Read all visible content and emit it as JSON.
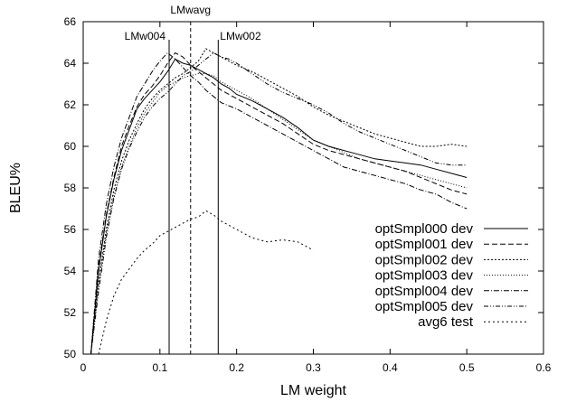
{
  "chart_data": {
    "type": "line",
    "xlabel": "LM weight",
    "ylabel": "BLEU%",
    "xlim": [
      0,
      0.6
    ],
    "ylim": [
      50,
      66
    ],
    "xticks": [
      0,
      0.1,
      0.2,
      0.3,
      0.4,
      0.5,
      0.6
    ],
    "xtick_labels": [
      "0",
      "0.1",
      "0.2",
      "0.3",
      "0.4",
      "0.5",
      "0.6"
    ],
    "yticks": [
      50,
      52,
      54,
      56,
      58,
      60,
      62,
      64,
      66
    ],
    "ytick_labels": [
      "50",
      "52",
      "54",
      "56",
      "58",
      "60",
      "62",
      "64",
      "66"
    ],
    "grid": false,
    "legend_position": "bottom-right",
    "vlines": [
      {
        "x": 0.112,
        "label": "LMw004",
        "style": "solid"
      },
      {
        "x": 0.14,
        "label": "LMwavg",
        "style": "dashed"
      },
      {
        "x": 0.176,
        "label": "LMw002",
        "style": "solid"
      }
    ],
    "series": [
      {
        "name": "optSmpl000 dev",
        "dash": "none",
        "x": [
          0.01,
          0.02,
          0.03,
          0.04,
          0.05,
          0.06,
          0.07,
          0.08,
          0.09,
          0.1,
          0.11,
          0.12,
          0.13,
          0.14,
          0.15,
          0.16,
          0.17,
          0.18,
          0.19,
          0.2,
          0.22,
          0.24,
          0.26,
          0.28,
          0.3,
          0.32,
          0.34,
          0.36,
          0.38,
          0.4,
          0.42,
          0.44,
          0.46,
          0.48,
          0.5
        ],
        "y": [
          50.0,
          54.0,
          56.6,
          58.4,
          59.8,
          60.8,
          61.8,
          62.3,
          62.7,
          63.1,
          63.6,
          64.2,
          64.0,
          63.9,
          63.7,
          63.5,
          63.3,
          63.0,
          62.8,
          62.5,
          62.2,
          61.8,
          61.4,
          60.9,
          60.3,
          60.0,
          59.8,
          59.6,
          59.4,
          59.3,
          59.2,
          59.1,
          58.9,
          58.7,
          58.5
        ]
      },
      {
        "name": "optSmpl001 dev",
        "dash": "6,3",
        "x": [
          0.01,
          0.02,
          0.03,
          0.04,
          0.05,
          0.06,
          0.07,
          0.08,
          0.09,
          0.1,
          0.11,
          0.12,
          0.13,
          0.14,
          0.15,
          0.16,
          0.17,
          0.18,
          0.2,
          0.22,
          0.24,
          0.26,
          0.28,
          0.3,
          0.32,
          0.34,
          0.36,
          0.38,
          0.4,
          0.42,
          0.44,
          0.46,
          0.48,
          0.5
        ],
        "y": [
          50.0,
          54.2,
          56.7,
          58.5,
          60.0,
          61.0,
          61.9,
          62.5,
          62.9,
          63.4,
          64.0,
          64.5,
          64.3,
          63.9,
          63.6,
          63.3,
          63.0,
          62.7,
          62.3,
          61.9,
          61.5,
          61.1,
          60.6,
          60.1,
          59.8,
          59.6,
          59.4,
          59.2,
          59.0,
          58.8,
          58.5,
          58.2,
          57.9,
          57.7
        ]
      },
      {
        "name": "optSmpl002 dev",
        "dash": "2,2",
        "x": [
          0.01,
          0.02,
          0.03,
          0.04,
          0.05,
          0.06,
          0.07,
          0.08,
          0.09,
          0.1,
          0.11,
          0.12,
          0.13,
          0.14,
          0.15,
          0.16,
          0.17,
          0.18,
          0.19,
          0.2,
          0.22,
          0.24,
          0.26,
          0.28,
          0.3,
          0.32,
          0.34,
          0.36,
          0.38,
          0.4,
          0.42,
          0.44,
          0.46,
          0.48,
          0.5
        ],
        "y": [
          50.0,
          53.5,
          56.0,
          57.9,
          59.3,
          60.3,
          61.1,
          61.8,
          62.3,
          62.7,
          63.0,
          63.3,
          63.5,
          63.8,
          64.1,
          64.7,
          64.5,
          64.3,
          64.1,
          63.9,
          63.6,
          63.2,
          62.8,
          62.4,
          61.9,
          61.5,
          61.2,
          60.9,
          60.6,
          60.4,
          60.2,
          60.0,
          60.0,
          60.1,
          60.0
        ]
      },
      {
        "name": "optSmpl003 dev",
        "dash": "1,2",
        "x": [
          0.01,
          0.02,
          0.03,
          0.04,
          0.05,
          0.06,
          0.07,
          0.08,
          0.09,
          0.1,
          0.11,
          0.12,
          0.13,
          0.14,
          0.15,
          0.16,
          0.17,
          0.18,
          0.19,
          0.2,
          0.22,
          0.24,
          0.26,
          0.28,
          0.3,
          0.32,
          0.34,
          0.36,
          0.38,
          0.4,
          0.42,
          0.44,
          0.46,
          0.48,
          0.5
        ],
        "y": [
          50.0,
          53.3,
          55.8,
          57.6,
          59.0,
          60.0,
          60.9,
          61.6,
          62.1,
          62.6,
          62.9,
          63.1,
          63.3,
          63.4,
          63.5,
          63.5,
          63.4,
          63.1,
          62.9,
          62.7,
          62.3,
          61.8,
          61.3,
          60.8,
          60.3,
          60.0,
          59.7,
          59.4,
          59.2,
          59.0,
          58.8,
          58.6,
          58.4,
          58.2,
          58.0
        ]
      },
      {
        "name": "optSmpl004 dev",
        "dash": "6,2,1,2",
        "x": [
          0.01,
          0.02,
          0.03,
          0.04,
          0.05,
          0.06,
          0.07,
          0.08,
          0.09,
          0.1,
          0.11,
          0.12,
          0.13,
          0.14,
          0.15,
          0.16,
          0.17,
          0.18,
          0.2,
          0.22,
          0.24,
          0.26,
          0.28,
          0.3,
          0.32,
          0.34,
          0.36,
          0.38,
          0.4,
          0.42,
          0.44,
          0.46,
          0.48,
          0.5
        ],
        "y": [
          50.0,
          54.6,
          57.2,
          59.0,
          60.4,
          61.4,
          62.4,
          63.0,
          63.6,
          64.1,
          64.5,
          64.2,
          63.8,
          63.4,
          63.1,
          62.7,
          62.4,
          62.1,
          61.8,
          61.4,
          61.0,
          60.6,
          60.2,
          59.8,
          59.4,
          59.0,
          58.8,
          58.6,
          58.4,
          58.2,
          57.9,
          57.7,
          57.3,
          57.0
        ]
      },
      {
        "name": "optSmpl005 dev",
        "dash": "5,2,1,2,1,2",
        "x": [
          0.01,
          0.02,
          0.03,
          0.04,
          0.05,
          0.06,
          0.07,
          0.08,
          0.09,
          0.1,
          0.11,
          0.12,
          0.13,
          0.14,
          0.15,
          0.16,
          0.17,
          0.18,
          0.19,
          0.2,
          0.22,
          0.24,
          0.26,
          0.28,
          0.3,
          0.32,
          0.34,
          0.36,
          0.38,
          0.4,
          0.42,
          0.44,
          0.46,
          0.48,
          0.5
        ],
        "y": [
          50.0,
          53.0,
          55.6,
          57.5,
          58.9,
          59.9,
          60.7,
          61.4,
          61.9,
          62.3,
          62.6,
          63.0,
          63.4,
          63.6,
          63.9,
          64.2,
          64.5,
          64.3,
          64.2,
          64.0,
          63.5,
          63.0,
          62.6,
          62.3,
          62.0,
          61.6,
          61.1,
          60.7,
          60.4,
          60.1,
          59.8,
          59.5,
          59.2,
          59.1,
          59.1
        ]
      },
      {
        "name": "avg6 test",
        "dash": "2,3",
        "x": [
          0.02,
          0.03,
          0.04,
          0.05,
          0.06,
          0.07,
          0.08,
          0.09,
          0.1,
          0.11,
          0.12,
          0.13,
          0.14,
          0.15,
          0.16,
          0.17,
          0.18,
          0.19,
          0.2,
          0.22,
          0.24,
          0.26,
          0.28,
          0.3
        ],
        "y": [
          50.0,
          51.6,
          52.8,
          53.6,
          54.1,
          54.6,
          55.0,
          55.3,
          55.7,
          55.9,
          56.1,
          56.3,
          56.5,
          56.6,
          56.9,
          56.7,
          56.4,
          56.2,
          56.0,
          55.6,
          55.4,
          55.5,
          55.4,
          55.0
        ]
      }
    ]
  }
}
